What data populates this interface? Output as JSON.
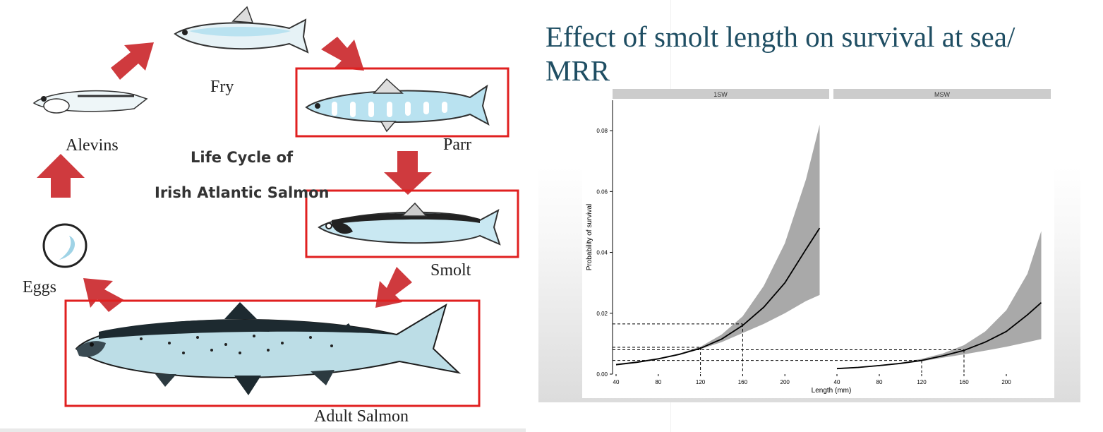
{
  "lifecycle": {
    "title_line1": "Life Cycle of",
    "title_line2": "Irish Atlantic Salmon",
    "stages": {
      "fry": "Fry",
      "alevins": "Alevins",
      "parr": "Parr",
      "smolt": "Smolt",
      "eggs": "Eggs",
      "adult": "Adult Salmon"
    },
    "colors": {
      "arrow": "#cf3a3e",
      "highlight_box": "#e02020",
      "fish_body": "#b9e2f0"
    }
  },
  "slide": {
    "title": "Effect of smolt length on survival at sea/ MRR"
  },
  "chart_data": {
    "type": "line",
    "ylabel": "Probability of survival",
    "xlabel": "Length (mm)",
    "ylim": [
      0.0,
      0.09
    ],
    "yticks": [
      "0.00",
      "0.02",
      "0.04",
      "0.06",
      "0.08"
    ],
    "ytick_values": [
      0.0,
      0.02,
      0.04,
      0.06,
      0.08
    ],
    "colors": {
      "ribbon": "#a9a9a9",
      "line": "#000000",
      "strip": "#cccccc",
      "guide": "#000000"
    },
    "panels": [
      {
        "name": "1SW",
        "xlim": [
          40,
          240
        ],
        "xticks": [
          "40",
          "80",
          "120",
          "160",
          "200"
        ],
        "xtick_values": [
          40,
          80,
          120,
          160,
          200
        ],
        "x": [
          40,
          60,
          80,
          100,
          120,
          140,
          160,
          180,
          200,
          220,
          233
        ],
        "fit": [
          0.0031,
          0.0039,
          0.005,
          0.0065,
          0.0085,
          0.0115,
          0.016,
          0.022,
          0.03,
          0.041,
          0.048
        ],
        "lower": [
          0.0028,
          0.0037,
          0.0048,
          0.0063,
          0.0082,
          0.0105,
          0.0135,
          0.0165,
          0.02,
          0.024,
          0.026
        ],
        "upper": [
          0.0034,
          0.0042,
          0.0053,
          0.0068,
          0.009,
          0.013,
          0.019,
          0.029,
          0.043,
          0.064,
          0.082
        ],
        "guides": [
          {
            "length": 120,
            "probability": 0.0088
          },
          {
            "length": 160,
            "probability": 0.0165
          }
        ]
      },
      {
        "name": "MSW",
        "xlim": [
          40,
          240
        ],
        "xticks": [
          "40",
          "80",
          "120",
          "160",
          "200"
        ],
        "xtick_values": [
          40,
          80,
          120,
          160,
          200
        ],
        "x": [
          40,
          60,
          80,
          100,
          120,
          140,
          160,
          180,
          200,
          220,
          233
        ],
        "fit": [
          0.0018,
          0.0022,
          0.0028,
          0.0035,
          0.0045,
          0.006,
          0.0078,
          0.0105,
          0.014,
          0.0195,
          0.0235
        ],
        "lower": [
          0.0016,
          0.002,
          0.0026,
          0.0033,
          0.0042,
          0.0054,
          0.0065,
          0.0077,
          0.009,
          0.0105,
          0.0115
        ],
        "upper": [
          0.002,
          0.0024,
          0.003,
          0.0038,
          0.005,
          0.0068,
          0.0095,
          0.014,
          0.021,
          0.033,
          0.047
        ],
        "guides": [
          {
            "length": 120,
            "probability": 0.0045
          },
          {
            "length": 160,
            "probability": 0.008
          }
        ]
      }
    ]
  }
}
